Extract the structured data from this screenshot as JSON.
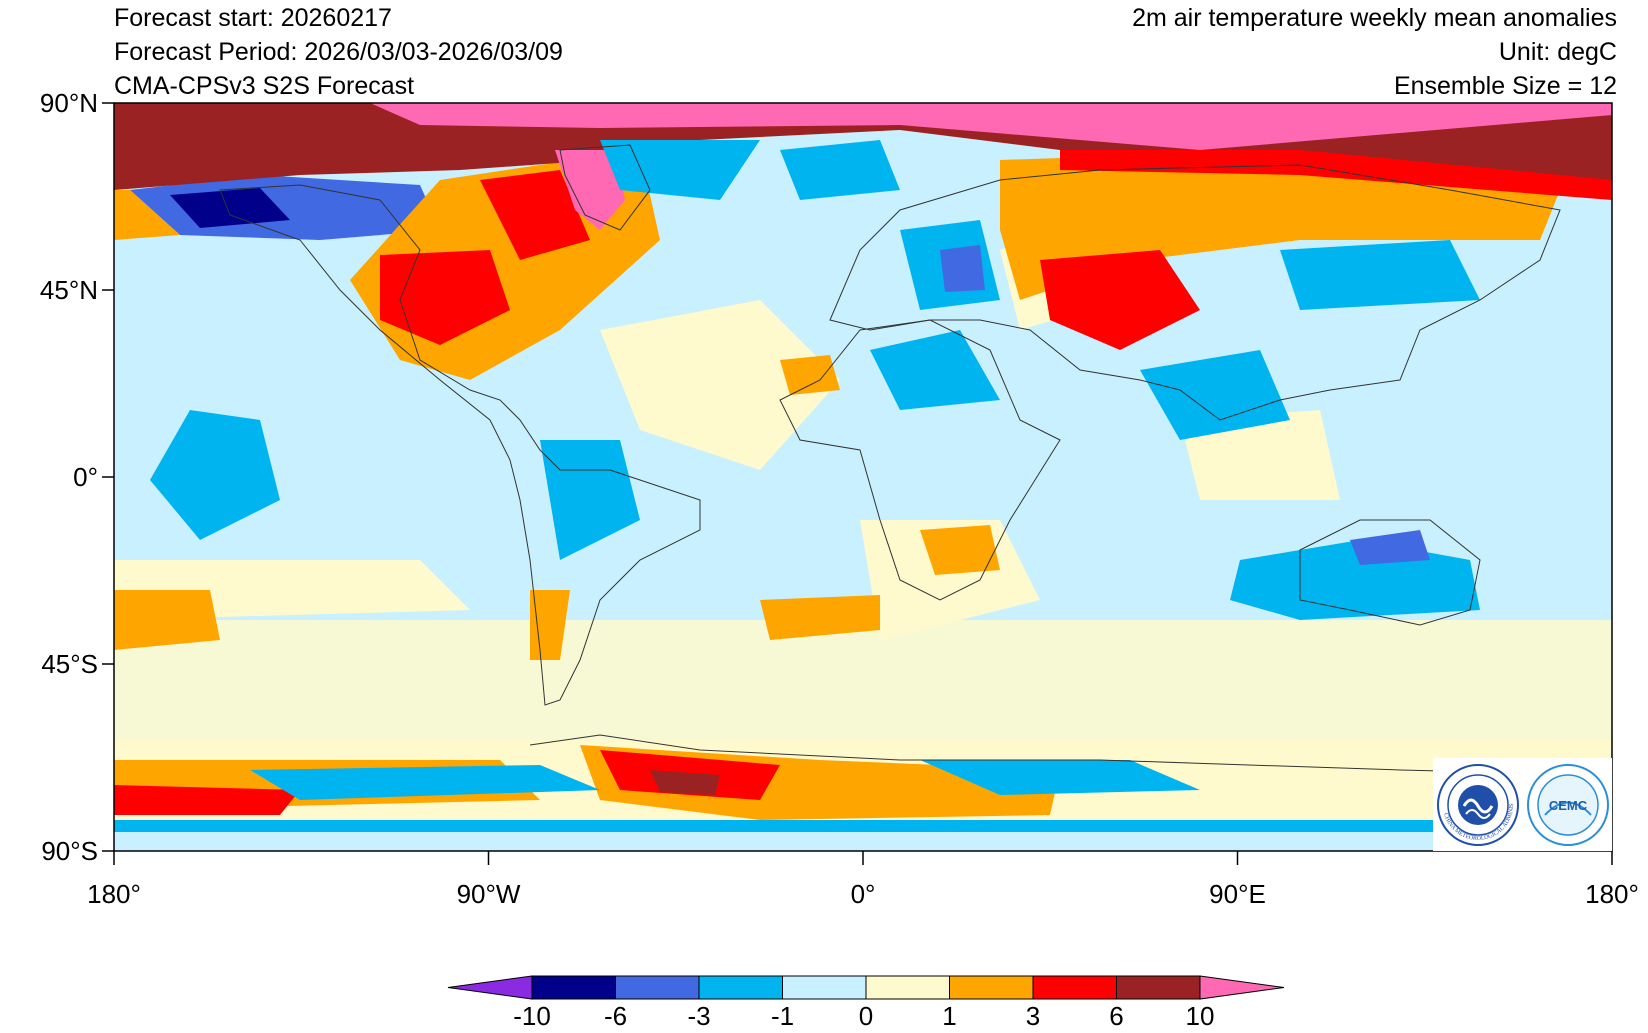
{
  "header": {
    "left": [
      "Forecast start: 20260217",
      "Forecast Period: 2026/03/03-2026/03/09",
      "CMA-CPSv3 S2S Forecast"
    ],
    "right": [
      "2m air temperature weekly mean anomalies",
      "Unit: degC",
      "Ensemble Size = 12"
    ]
  },
  "axes": {
    "lat_labels": [
      "90°N",
      "45°N",
      "0°",
      "45°S",
      "90°S"
    ],
    "lon_labels": [
      "180°",
      "90°W",
      "0°",
      "90°E",
      "180°"
    ]
  },
  "colorbar": {
    "labels": [
      "-10",
      "-6",
      "-3",
      "-1",
      "0",
      "1",
      "3",
      "6",
      "10"
    ],
    "colors": [
      "#8a2be2",
      "#00008b",
      "#4169e1",
      "#00b4f0",
      "#c8f0ff",
      "#fffacd",
      "#ffa500",
      "#ff0000",
      "#9b2222",
      "#ff69b4"
    ]
  },
  "logos": {
    "cma": "CHINA METEOROLOGICAL ADMINISTRATION",
    "cemc": "CEMC"
  }
}
